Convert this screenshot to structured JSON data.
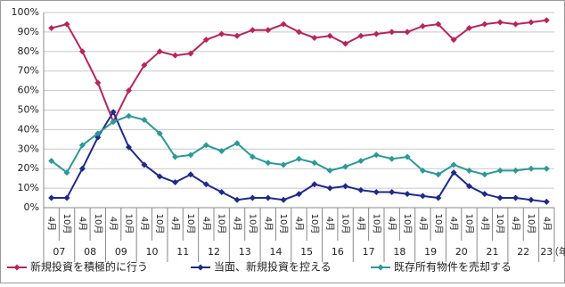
{
  "chart_data": {
    "type": "line",
    "categories": [
      "4月",
      "10月",
      "4月",
      "10月",
      "4月",
      "10月",
      "4月",
      "10月",
      "4月",
      "10月",
      "4月",
      "10月",
      "4月",
      "10月",
      "4月",
      "10月",
      "4月",
      "10月",
      "4月",
      "10月",
      "4月",
      "10月",
      "4月",
      "10月",
      "4月",
      "10月",
      "4月",
      "10月",
      "4月",
      "10月",
      "4月",
      "10月",
      "4月"
    ],
    "x_groups": [
      "07",
      null,
      "08",
      null,
      "09",
      null,
      "10",
      null,
      "11",
      null,
      "12",
      null,
      "13",
      null,
      "14",
      null,
      "15",
      null,
      "16",
      null,
      "17",
      null,
      "18",
      null,
      "19",
      null,
      "20",
      null,
      "21",
      null,
      "22",
      null,
      "23"
    ],
    "x_unit": "（年度）",
    "ylim": [
      0,
      100
    ],
    "yticks": [
      {
        "value": 0,
        "label": "0%"
      },
      {
        "value": 10,
        "label": "10%"
      },
      {
        "value": 20,
        "label": "20%"
      },
      {
        "value": 30,
        "label": "30%"
      },
      {
        "value": 40,
        "label": "40%"
      },
      {
        "value": 50,
        "label": "50%"
      },
      {
        "value": 60,
        "label": "60%"
      },
      {
        "value": 70,
        "label": "70%"
      },
      {
        "value": 80,
        "label": "80%"
      },
      {
        "value": 90,
        "label": "90%"
      },
      {
        "value": 100,
        "label": "100%"
      }
    ],
    "grid": true,
    "legend": "bottom",
    "series": [
      {
        "name": "新規投資を積極的に行う",
        "color": "#b8245e",
        "values": [
          92,
          94,
          80,
          64,
          44,
          60,
          73,
          80,
          78,
          79,
          86,
          89,
          88,
          91,
          91,
          94,
          90,
          87,
          88,
          84,
          88,
          89,
          90,
          90,
          93,
          94,
          86,
          92,
          94,
          95,
          94,
          95,
          96
        ]
      },
      {
        "name": "当面、新規投資を控える",
        "color": "#1f2a8a",
        "values": [
          5,
          5,
          20,
          36,
          49,
          31,
          22,
          16,
          13,
          17,
          12,
          8,
          4,
          5,
          5,
          4,
          7,
          12,
          10,
          11,
          9,
          8,
          8,
          7,
          6,
          5,
          18,
          11,
          7,
          5,
          5,
          4,
          3
        ]
      },
      {
        "name": "既存所有物件を売却する",
        "color": "#2a9a98",
        "values": [
          24,
          18,
          32,
          38,
          44,
          47,
          45,
          38,
          26,
          27,
          32,
          29,
          33,
          26,
          23,
          22,
          25,
          23,
          19,
          21,
          24,
          27,
          25,
          26,
          19,
          17,
          22,
          19,
          17,
          19,
          19,
          20,
          20
        ]
      }
    ]
  }
}
